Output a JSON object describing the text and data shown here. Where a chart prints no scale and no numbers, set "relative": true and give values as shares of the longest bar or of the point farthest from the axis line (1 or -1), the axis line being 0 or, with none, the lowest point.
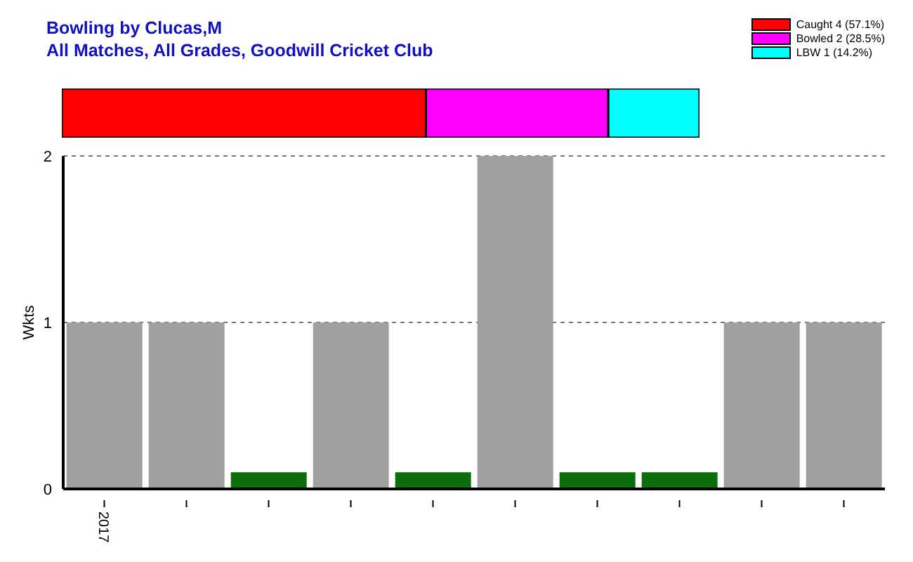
{
  "chart_data": [
    {
      "type": "bar",
      "title": "Bowling by Clucas,M",
      "subtitle": "All Matches, All Grades, Goodwill Cricket Club",
      "orientation": "horizontal",
      "stacked": true,
      "relative": true,
      "legend": "top right",
      "categories": [
        null
      ],
      "series": [
        {
          "name": "Caught 4 (57.1%)",
          "color": "#ff0000",
          "values": [
            0.571
          ]
        },
        {
          "name": "Bowled 2 (28.5%)",
          "color": "#ff00ff",
          "values": [
            0.286
          ]
        },
        {
          "name": "LBW 1 (14.2%)",
          "color": "#00ffff",
          "values": [
            0.143
          ]
        }
      ]
    },
    {
      "type": "bar",
      "ylabel": "Wkts",
      "categories": [
        "2017",
        null,
        null,
        null,
        null,
        null,
        null,
        null,
        null,
        null
      ],
      "values": [
        1,
        1,
        0.1,
        1,
        0.1,
        2,
        0.1,
        0.1,
        1,
        1
      ],
      "colors": [
        "#a0a0a0",
        "#a0a0a0",
        "#0a6e0a",
        "#a0a0a0",
        "#0a6e0a",
        "#a0a0a0",
        "#0a6e0a",
        "#0a6e0a",
        "#a0a0a0",
        "#a0a0a0"
      ],
      "ylim": [
        0,
        2
      ],
      "yticks": [
        0,
        1,
        2
      ],
      "grid": "y"
    }
  ]
}
